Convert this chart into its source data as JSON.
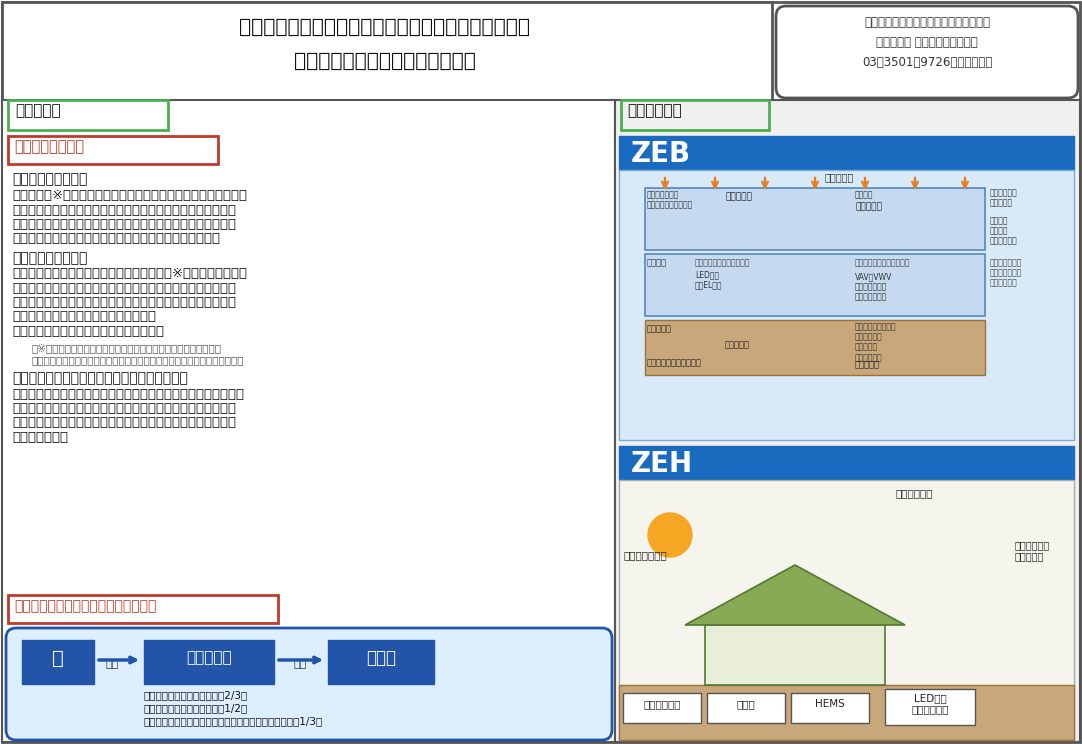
{
  "bg_color": "#ffffff",
  "title_line1": "住宅・ビルの革新的省エネ技術導入促進事業費補助金",
  "title_line2": "１１０．０億円（７０．０億円）",
  "info_line1": "資源エネｷﾞｰ庁　省エネｷﾞｰ対策課",
  "info_line2": "製造産業局 住宅産業窯業建材課",
  "info_line3": "03－3501－9726（省エネ課）",
  "left_section_title": "事業の内容",
  "subsection1_title": "事業の概要・目的",
  "zeb_heading": "【ＺＥＢ実証事業】",
  "zeb_text1": "　ＺＥＢ（※）の実現と普及拡大を目指し、かつ２０２０年まで",
  "zeb_text2": "に新築公共建築物等においてＺＥＢ化を実現するため、ＺＥＢ",
  "zeb_text3": "の構成要素に資する高性能設備機器等を導入し、高い省エネル",
  "zeb_text4": "ギー性能を実現する建築物に対し導入費用を支援します。",
  "zeh_heading": "【ＺＥＨ支援事業】",
  "zeh_text1": "　住宅の省エネ化を推進するため、ＺＥＨ（※）の普及促進を図",
  "zeh_text2": "り、中小工務店におけるゼロ・エネルギー住宅の取組み、高性",
  "zeh_text3": "能設備機器と制御機構等の組合せによる住宅のゼロエネ化に資",
  "zeh_text4": "する住宅システムの導入を支援します。",
  "zeh_text5": "　（経済産業省・国土交通省　共同事業）",
  "footnote1": "　※ＺＥＢ／ＺＥＨ（ネット・ゼロ・エネルギー・ビル／ハウス）",
  "footnote2": "　　：年間の１次エネルギー消費量がネットで概ねゼロとなる建築物／住宅",
  "existing_heading": "【既築住宅における高性能建材導入促進事業】",
  "existing_text1": "　既築住宅の抜本的な省エネルギーを図るため、既築住宅の改修",
  "existing_text2": "に対し、一定の省エネルギー性能を満たす高性能な断熱材や窓",
  "existing_text3": "の導入を支援し、高性能な断熱材や窓の市場拡大と価格低減効",
  "existing_text4": "果を狙います。",
  "condition_title": "条件（対象者、対象行為、補助率等）",
  "right_section_title": "事業イメージ",
  "zeb_label": "ZEB",
  "zeh_label": "ZEH",
  "node1_text": "国",
  "arrow1_label": "補助",
  "node2_text": "民間団体等",
  "arrow2_label": "補助",
  "node3_text": "設置者",
  "flow_note1": "【ＺＥＢ実証事業】　（最大2/3）",
  "flow_note2": "【ＺＥＨ支援事業】　（最大1/2）",
  "flow_note3": "【既築住宅における高性能建材導入促進事業】　（最大1/3）",
  "zeb_labels": {
    "solar": "太陽熱利用",
    "outer_skin": "外皮性能の向上\nエアフローウィンドウ",
    "efficient_light": "高効率照明",
    "efficient_ac": "高効率空調",
    "radiant_cool": "放射冷房",
    "task_light": "タスク・アンビエント照明",
    "task_ac": "タスク・アンビエント空調",
    "daylight": "昼光利用",
    "led": "LED照明\n有機EL照明",
    "vav": "VAV・VWV\n大温度差養送風\nデシカント空調",
    "river": "河川水利用",
    "sewage": "下水熱利用",
    "unused": "未利用エネルギーの活用",
    "hp": "高効率ヒートポンプ\n高効率ボイラ\nコージェネ\n高効率ポンプ",
    "heat_source": "高効率熱源",
    "outdoor": "外気負荷削減\n全熱交換器",
    "natural_vent": "自然換気\n外気冷房\n夜間外気冷却",
    "cool_tube": "クールチューブ\n（地中熱利用）\n（井水利用）"
  },
  "zeh_labels": {
    "solar_water": "太陽熱温水器",
    "insulation": "躯体の高断熱化",
    "ac": "高効率空調機\n輻射空調機",
    "water_heater": "高効率給湯器",
    "battery": "蓄電池",
    "hems": "HEMS",
    "led": "LED照明\n人感センサー"
  }
}
